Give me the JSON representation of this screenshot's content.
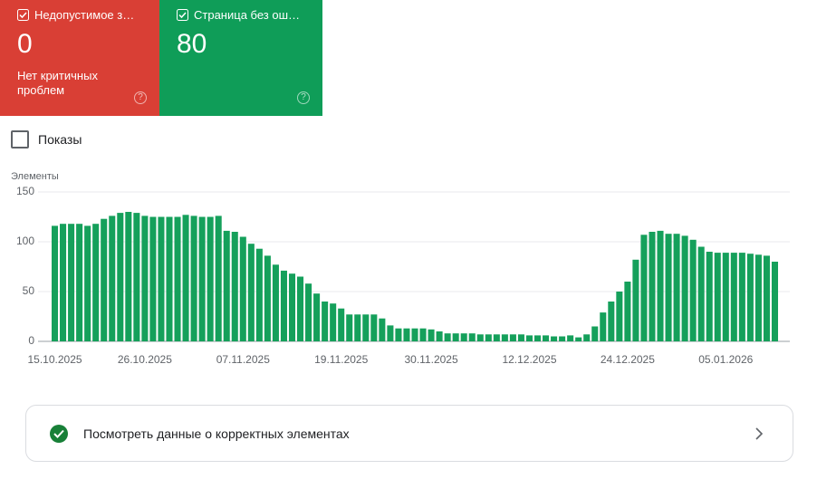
{
  "cards": [
    {
      "label": "Недопустимое з…",
      "value": "0",
      "description": "Нет критичных проблем",
      "color": "#d93f35"
    },
    {
      "label": "Страница без ош…",
      "value": "80",
      "color": "#0f9d58"
    }
  ],
  "checkbox": {
    "label": "Показы"
  },
  "chart_data": {
    "type": "bar",
    "y_label": "Элементы",
    "color": "#15a05b",
    "categories": [
      "15.10.2025",
      null,
      null,
      null,
      null,
      null,
      null,
      null,
      null,
      null,
      null,
      "26.10.2025",
      null,
      null,
      null,
      null,
      null,
      null,
      null,
      null,
      null,
      null,
      null,
      "07.11.2025",
      null,
      null,
      null,
      null,
      null,
      null,
      null,
      null,
      null,
      null,
      null,
      "19.11.2025",
      null,
      null,
      null,
      null,
      null,
      null,
      null,
      null,
      null,
      null,
      "30.11.2025",
      null,
      null,
      null,
      null,
      null,
      null,
      null,
      null,
      null,
      null,
      null,
      "12.12.2025",
      null,
      null,
      null,
      null,
      null,
      null,
      null,
      null,
      null,
      null,
      null,
      "24.12.2025",
      null,
      null,
      null,
      null,
      null,
      null,
      null,
      null,
      null,
      null,
      null,
      "05.01.2026",
      null,
      null,
      null,
      null,
      null,
      null
    ],
    "values": [
      116,
      118,
      118,
      118,
      116,
      118,
      123,
      126,
      129,
      130,
      129,
      126,
      125,
      125,
      125,
      125,
      127,
      126,
      125,
      125,
      126,
      111,
      110,
      105,
      98,
      93,
      86,
      77,
      71,
      68,
      65,
      58,
      48,
      40,
      38,
      33,
      27,
      27,
      27,
      27,
      23,
      16,
      13,
      13,
      13,
      13,
      12,
      10,
      8,
      8,
      8,
      8,
      7,
      7,
      7,
      7,
      7,
      7,
      6,
      6,
      6,
      5,
      5,
      6,
      4,
      7,
      15,
      29,
      40,
      50,
      60,
      82,
      107,
      110,
      111,
      108,
      108,
      106,
      102,
      95,
      90,
      89,
      89,
      89,
      89,
      88,
      87,
      86,
      80
    ],
    "ylim": [
      0,
      150
    ],
    "yticks": [
      0,
      50,
      100,
      150
    ],
    "grid": true
  },
  "link": {
    "label": "Посмотреть данные о корректных элементах"
  }
}
